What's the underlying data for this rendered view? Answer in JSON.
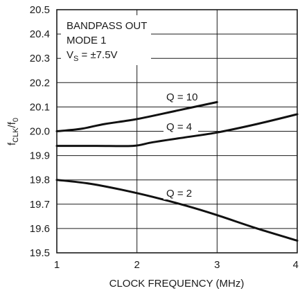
{
  "chart_data": {
    "type": "line",
    "xlabel": "CLOCK FREQUENCY (MHz)",
    "ylabel": {
      "main": "f",
      "sub1": "CLK",
      "sep": "/f",
      "sub2": "0"
    },
    "xlim": [
      1,
      4
    ],
    "ylim": [
      19.5,
      20.5
    ],
    "x_ticks": [
      "1",
      "2",
      "3",
      "4"
    ],
    "y_ticks": [
      "19.5",
      "19.6",
      "19.7",
      "19.8",
      "19.9",
      "20.0",
      "20.1",
      "20.2",
      "20.3",
      "20.4",
      "20.5"
    ],
    "grid": true,
    "annotation": {
      "line1": "BANDPASS OUT",
      "line2": "MODE 1",
      "line3_main": "V",
      "line3_sub": "S",
      "line3_rest": " = ±7.5V"
    },
    "series": [
      {
        "name": "Q = 10",
        "x": [
          1,
          1.3,
          1.6,
          2.0,
          2.5,
          3.0
        ],
        "y": [
          20.0,
          20.01,
          20.03,
          20.05,
          20.085,
          20.12
        ]
      },
      {
        "name": "Q = 4",
        "x": [
          1,
          1.5,
          1.95,
          2.2,
          2.6,
          3.0,
          3.5,
          4.0
        ],
        "y": [
          19.94,
          19.94,
          19.94,
          19.955,
          19.975,
          19.995,
          20.03,
          20.07
        ]
      },
      {
        "name": "Q = 2",
        "x": [
          1,
          1.4,
          1.8,
          2.2,
          2.6,
          3.0,
          3.5,
          4.0
        ],
        "y": [
          19.8,
          19.785,
          19.76,
          19.73,
          19.695,
          19.655,
          19.6,
          19.55
        ]
      }
    ]
  }
}
